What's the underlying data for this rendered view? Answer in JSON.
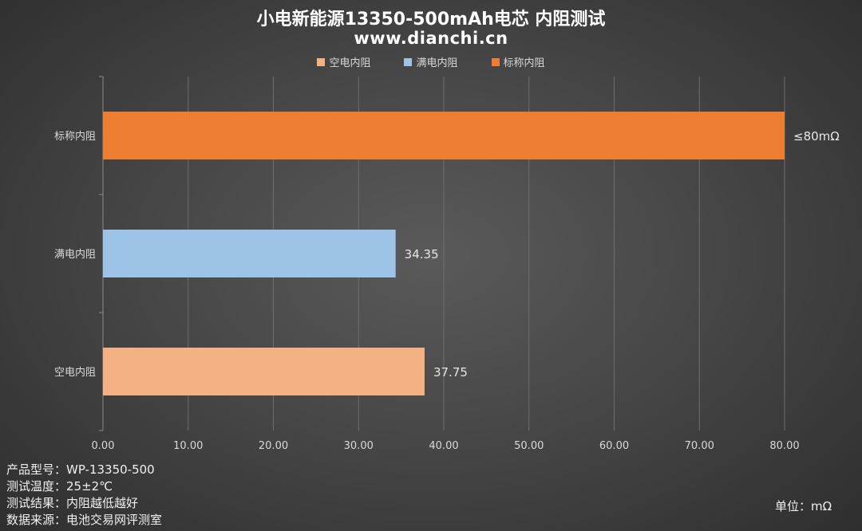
{
  "title": "小电新能源13350-500mAh电芯 内阻测试",
  "subtitle": "www.dianchi.cn",
  "notes": [
    "产品型号：WP-13350-500",
    "测试温度：25±2℃",
    "测试结果：内阻越低越好",
    "数据来源：电池交易网评测室"
  ],
  "unit_label": "单位：mΩ",
  "chart_data": {
    "type": "bar",
    "orientation": "horizontal",
    "categories": [
      "标称内阻",
      "满电内阻",
      "空电内阻"
    ],
    "values": [
      80,
      34.35,
      37.75
    ],
    "data_labels": [
      "≤80mΩ",
      "34.35",
      "37.75"
    ],
    "colors": [
      "#ED7D31",
      "#9DC3E6",
      "#F4B183"
    ],
    "legend": [
      {
        "name": "空电内阻",
        "color": "#F4B183"
      },
      {
        "name": "满电内阻",
        "color": "#9DC3E6"
      },
      {
        "name": "标称内阻",
        "color": "#ED7D31"
      }
    ],
    "legend_position": "top",
    "x_ticks": [
      "0.00",
      "10.00",
      "20.00",
      "30.00",
      "40.00",
      "50.00",
      "60.00",
      "70.00",
      "80.00"
    ],
    "xlim": [
      0,
      80
    ],
    "grid": true
  }
}
